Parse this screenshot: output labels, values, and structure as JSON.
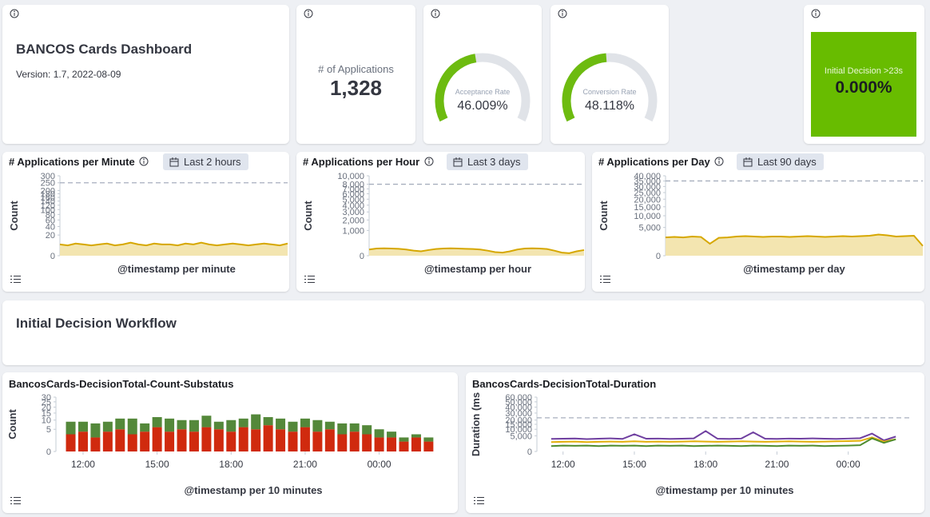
{
  "header": {
    "title": "BANCOS Cards Dashboard",
    "version": "Version: 1.7, 2022-08-09"
  },
  "metric": {
    "label": "# of Applications",
    "value": "1,328"
  },
  "gauges": [
    {
      "label": "Acceptance Rate",
      "value": 46.009,
      "value_label": "46.009%",
      "range": [
        0,
        100
      ],
      "color": "#6dbb10"
    },
    {
      "label": "Conversion Rate",
      "value": 48.118,
      "value_label": "48.118%",
      "range": [
        0,
        100
      ],
      "color": "#6dbb10"
    }
  ],
  "alert": {
    "label": "Initial Decision >23s",
    "value": "0.000%",
    "color": "#68bc00"
  },
  "section": {
    "title": "Initial Decision Workflow"
  },
  "charts": [
    {
      "type": "area",
      "title": "# Applications per Minute",
      "time_range": "Last 2 hours",
      "y_label": "Count",
      "x_label": "@timestamp per minute",
      "scale": "sqrt",
      "ylim": [
        0,
        300
      ],
      "yticks": [
        0,
        20,
        40,
        60,
        80,
        100,
        120,
        140,
        160,
        180,
        200,
        250,
        300
      ],
      "threshold": 250,
      "color": "#d6a700",
      "fill": "#f3e5b0",
      "values": [
        6,
        5,
        7,
        6,
        5,
        6,
        7,
        5,
        6,
        8,
        6,
        5,
        7,
        6,
        6,
        5,
        7,
        6,
        8,
        6,
        5,
        6,
        7,
        6,
        5,
        6,
        7,
        6,
        5,
        7
      ]
    },
    {
      "type": "area",
      "title": "# Applications per Hour",
      "time_range": "Last 3 days",
      "y_label": "Count",
      "x_label": "@timestamp per hour",
      "scale": "sqrt",
      "ylim": [
        0,
        10000
      ],
      "yticks": [
        0,
        {
          "value": 1000,
          "label": "1,000"
        },
        {
          "value": 2000,
          "label": "2,000"
        },
        {
          "value": 3000,
          "label": "3,000"
        },
        {
          "value": 4000,
          "label": "4,000"
        },
        {
          "value": 5000,
          "label": "5,000"
        },
        {
          "value": 6000,
          "label": "6,000"
        },
        {
          "value": 7000,
          "label": "7,000"
        },
        {
          "value": 8000,
          "label": "8,000"
        },
        {
          "value": 10000,
          "label": "10,000"
        }
      ],
      "threshold": 8000,
      "color": "#d6a700",
      "fill": "#f3e5b0",
      "values": [
        60,
        80,
        85,
        80,
        75,
        60,
        40,
        30,
        50,
        70,
        80,
        85,
        80,
        75,
        70,
        60,
        40,
        20,
        15,
        30,
        60,
        80,
        85,
        80,
        70,
        40,
        15,
        10,
        30,
        50
      ]
    },
    {
      "type": "area",
      "title": "# Applications per Day",
      "time_range": "Last 90 days",
      "y_label": "Count",
      "x_label": "@timestamp per day",
      "scale": "sqrt",
      "ylim": [
        0,
        40000
      ],
      "yticks": [
        0,
        {
          "value": 5000,
          "label": "5,000"
        },
        {
          "value": 10000,
          "label": "10,000"
        },
        {
          "value": 15000,
          "label": "15,000"
        },
        {
          "value": 20000,
          "label": "20,000"
        },
        {
          "value": 25000,
          "label": "25,000"
        },
        {
          "value": 30000,
          "label": "30,000"
        },
        {
          "value": 35000,
          "label": "35,000"
        },
        {
          "value": 40000,
          "label": "40,000"
        }
      ],
      "threshold": 35000,
      "color": "#d6a700",
      "fill": "#f3e5b0",
      "values": [
        2100,
        2200,
        2100,
        2300,
        2200,
        900,
        2000,
        2100,
        2300,
        2400,
        2300,
        2200,
        2300,
        2300,
        2200,
        2300,
        2400,
        2300,
        2200,
        2300,
        2400,
        2300,
        2400,
        2500,
        2800,
        2600,
        2300,
        2400,
        2500,
        600
      ]
    },
    {
      "type": "stacked_bar",
      "title": "BancosCards-DecisionTotal-Count-Substatus",
      "y_label": "Count",
      "x_label": "@timestamp per 10 minutes",
      "scale": "sqrt",
      "ylim": [
        0,
        30
      ],
      "yticks": [
        0,
        5,
        10,
        15,
        20,
        25,
        30
      ],
      "xlim": [
        10.9,
        26.7
      ],
      "xticks": [
        {
          "value": 12,
          "label": "12:00"
        },
        {
          "value": 15,
          "label": "15:00"
        },
        {
          "value": 18,
          "label": "18:00"
        },
        {
          "value": 21,
          "label": "21:00"
        },
        {
          "value": 24,
          "label": "00:00"
        }
      ],
      "x": [
        11.5,
        12,
        12.5,
        13,
        13.5,
        14,
        14.5,
        15,
        15.5,
        16,
        16.5,
        17,
        17.5,
        18,
        18.5,
        19,
        19.5,
        20,
        20.5,
        21,
        21.5,
        22,
        22.5,
        23,
        23.5,
        24,
        24.5,
        25,
        25.5,
        26
      ],
      "series": [
        {
          "color": "#d02a0e",
          "values": [
            3,
            4,
            2,
            4,
            5,
            3,
            4,
            6,
            4,
            5,
            4,
            6,
            5,
            4,
            6,
            5,
            7,
            5,
            4,
            6,
            4,
            5,
            3,
            4,
            3,
            2,
            2,
            1,
            2,
            1
          ]
        },
        {
          "color": "#54883a",
          "values": [
            6,
            5,
            6,
            5,
            6,
            8,
            4,
            6,
            7,
            5,
            6,
            7,
            4,
            6,
            5,
            9,
            5,
            6,
            5,
            5,
            6,
            4,
            5,
            4,
            4,
            3,
            2,
            1,
            1,
            1
          ]
        }
      ]
    },
    {
      "type": "line",
      "title": "BancosCards-DecisionTotal-Duration",
      "y_label": "Duration (ms",
      "x_label": "@timestamp per 10 minutes",
      "scale": "sqrt",
      "ylim": [
        0,
        60000
      ],
      "yticks": [
        0,
        {
          "value": 5000,
          "label": "5,000"
        },
        {
          "value": 10000,
          "label": "10,000"
        },
        {
          "value": 15000,
          "label": "15,000"
        },
        {
          "value": 20000,
          "label": "20,000"
        },
        {
          "value": 30000,
          "label": "30,000"
        },
        {
          "value": 40000,
          "label": "40,000"
        },
        {
          "value": 50000,
          "label": "50,000"
        },
        {
          "value": 60000,
          "label": "60,000"
        }
      ],
      "threshold": 23000,
      "xlim": [
        10.9,
        26.7
      ],
      "xticks": [
        {
          "value": 12,
          "label": "12:00"
        },
        {
          "value": 15,
          "label": "15:00"
        },
        {
          "value": 18,
          "label": "18:00"
        },
        {
          "value": 21,
          "label": "21:00"
        },
        {
          "value": 24,
          "label": "00:00"
        }
      ],
      "x": [
        11.5,
        12,
        12.5,
        13,
        13.5,
        14,
        14.5,
        15,
        15.5,
        16,
        16.5,
        17,
        17.5,
        18,
        18.5,
        19,
        19.5,
        20,
        20.5,
        21,
        21.5,
        22,
        22.5,
        23,
        23.5,
        24,
        24.5,
        25,
        25.5,
        26
      ],
      "series": [
        {
          "color": "#6f3fa0",
          "values": [
            3200,
            3300,
            3400,
            3100,
            3300,
            3500,
            3200,
            6000,
            3300,
            3400,
            3200,
            3300,
            3500,
            8500,
            3300,
            3200,
            3400,
            7500,
            3300,
            3200,
            3400,
            3300,
            3500,
            3300,
            3200,
            3400,
            3600,
            6500,
            2500,
            4500
          ]
        },
        {
          "color": "#e3b00a",
          "values": [
            1800,
            1900,
            2000,
            1800,
            1900,
            2000,
            1900,
            2100,
            1900,
            2000,
            1900,
            2000,
            2100,
            2000,
            1900,
            2000,
            2100,
            2000,
            1900,
            2000,
            2100,
            2000,
            1900,
            2000,
            2100,
            2200,
            2300,
            4000,
            2000,
            3000
          ]
        },
        {
          "color": "#4f8c2f",
          "values": [
            600,
            700,
            650,
            700,
            600,
            700,
            650,
            700,
            600,
            700,
            650,
            700,
            600,
            650,
            700,
            650,
            600,
            700,
            650,
            600,
            700,
            650,
            700,
            600,
            650,
            700,
            800,
            3500,
            1500,
            3000
          ]
        }
      ]
    }
  ]
}
